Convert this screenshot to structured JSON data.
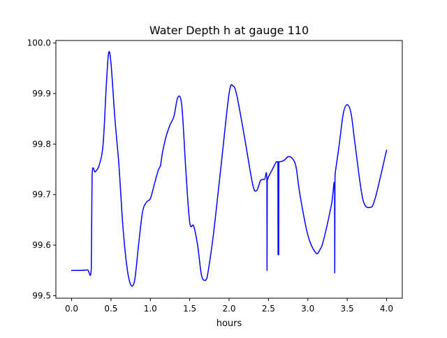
{
  "chart_data": {
    "type": "line",
    "title": "Water Depth h at gauge 110",
    "xlabel": "hours",
    "ylabel": "",
    "xlim": [
      -0.2,
      4.2
    ],
    "ylim": [
      99.495,
      100.005
    ],
    "xticks": [
      0.0,
      0.5,
      1.0,
      1.5,
      2.0,
      2.5,
      3.0,
      3.5,
      4.0
    ],
    "xtick_labels": [
      "0.0",
      "0.5",
      "1.0",
      "1.5",
      "2.0",
      "2.5",
      "3.0",
      "3.5",
      "4.0"
    ],
    "yticks": [
      99.5,
      99.6,
      99.7,
      99.8,
      99.9,
      100.0
    ],
    "ytick_labels": [
      "99.5",
      "99.6",
      "99.7",
      "99.8",
      "99.9",
      "100.0"
    ],
    "grid": false,
    "series": [
      {
        "color": "#0000ff",
        "x": [
          0.0,
          0.1,
          0.2,
          0.25,
          0.26,
          0.3,
          0.35,
          0.4,
          0.44,
          0.47,
          0.5,
          0.55,
          0.6,
          0.65,
          0.7,
          0.75,
          0.8,
          0.85,
          0.9,
          0.95,
          1.0,
          1.05,
          1.1,
          1.13,
          1.15,
          1.2,
          1.25,
          1.3,
          1.35,
          1.4,
          1.45,
          1.5,
          1.55,
          1.6,
          1.65,
          1.7,
          1.72,
          1.8,
          1.9,
          2.0,
          2.05,
          2.1,
          2.2,
          2.3,
          2.35,
          2.4,
          2.45,
          2.48,
          2.482,
          2.485,
          2.5,
          2.55,
          2.6,
          2.62,
          2.622,
          2.63,
          2.632,
          2.635,
          2.65,
          2.7,
          2.75,
          2.8,
          2.85,
          2.9,
          3.0,
          3.1,
          3.15,
          3.2,
          3.3,
          3.34,
          3.342,
          3.345,
          3.35,
          3.4,
          3.45,
          3.5,
          3.55,
          3.6,
          3.7,
          3.8,
          3.85,
          3.9,
          4.0
        ],
        "y": [
          99.55,
          99.55,
          99.551,
          99.555,
          99.738,
          99.745,
          99.758,
          99.8,
          99.915,
          99.98,
          99.96,
          99.85,
          99.76,
          99.64,
          99.56,
          99.522,
          99.53,
          99.6,
          99.665,
          99.685,
          99.692,
          99.72,
          99.748,
          99.758,
          99.78,
          99.815,
          99.838,
          99.855,
          99.893,
          99.875,
          99.75,
          99.645,
          99.638,
          99.6,
          99.54,
          99.53,
          99.535,
          99.62,
          99.76,
          99.9,
          99.915,
          99.895,
          99.81,
          99.72,
          99.708,
          99.728,
          99.73,
          99.73,
          99.55,
          99.728,
          99.735,
          99.75,
          99.765,
          99.765,
          99.581,
          99.581,
          99.765,
          99.765,
          99.765,
          99.768,
          99.775,
          99.772,
          99.755,
          99.7,
          99.62,
          99.585,
          99.59,
          99.61,
          99.68,
          99.718,
          99.545,
          99.735,
          99.745,
          99.8,
          99.86,
          99.878,
          99.86,
          99.8,
          99.69,
          99.675,
          99.69,
          99.72,
          99.788
        ]
      }
    ]
  }
}
